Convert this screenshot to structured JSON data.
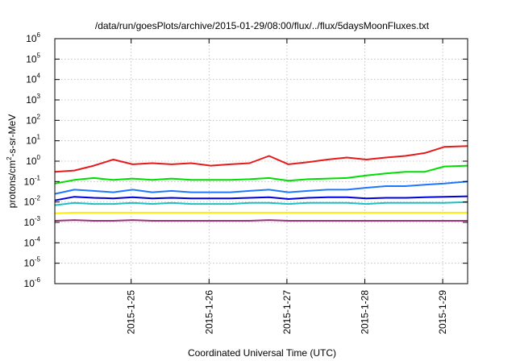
{
  "chart_data": {
    "type": "line",
    "title": "/data/run/goesPlots/archive/2015-01-29/08:00/flux/../flux/5daysMoonFluxes.txt",
    "xlabel": "Coordinated Universal Time (UTC)",
    "ylabel": {
      "base": "protons/cm",
      "sup": "2",
      "rest": "-s-sr-MeV"
    },
    "yscale": "log",
    "ylim": [
      1e-06,
      1000000.0
    ],
    "xlim": [
      0,
      5.3
    ],
    "x_ticks": [
      {
        "x": 0.98,
        "label": "2015-1-25"
      },
      {
        "x": 1.98,
        "label": "2015-1-26"
      },
      {
        "x": 2.98,
        "label": "2015-1-27"
      },
      {
        "x": 3.98,
        "label": "2015-1-28"
      },
      {
        "x": 4.98,
        "label": "2015-1-29"
      }
    ],
    "y_ticks": [
      {
        "value": 1e-06,
        "base": "10",
        "exp": "-6"
      },
      {
        "value": 1e-05,
        "base": "10",
        "exp": "-5"
      },
      {
        "value": 0.0001,
        "base": "10",
        "exp": "-4"
      },
      {
        "value": 0.001,
        "base": "10",
        "exp": "-3"
      },
      {
        "value": 0.01,
        "base": "10",
        "exp": "-2"
      },
      {
        "value": 0.1,
        "base": "10",
        "exp": "-1"
      },
      {
        "value": 1,
        "base": "10",
        "exp": "0"
      },
      {
        "value": 10,
        "base": "10",
        "exp": "1"
      },
      {
        "value": 100,
        "base": "10",
        "exp": "2"
      },
      {
        "value": 1000,
        "base": "10",
        "exp": "3"
      },
      {
        "value": 10000,
        "base": "10",
        "exp": "4"
      },
      {
        "value": 100000,
        "base": "10",
        "exp": "5"
      },
      {
        "value": 1000000,
        "base": "10",
        "exp": "6"
      }
    ],
    "grid": true,
    "series": [
      {
        "color": "#e41a1c",
        "x": [
          0,
          0.25,
          0.5,
          0.75,
          1.0,
          1.25,
          1.5,
          1.75,
          2.0,
          2.25,
          2.5,
          2.75,
          3.0,
          3.25,
          3.5,
          3.75,
          4.0,
          4.25,
          4.5,
          4.75,
          5.0,
          5.3
        ],
        "y": [
          0.3,
          0.35,
          0.6,
          1.2,
          0.7,
          0.8,
          0.7,
          0.8,
          0.6,
          0.7,
          0.8,
          1.8,
          0.7,
          0.9,
          1.2,
          1.5,
          1.2,
          1.5,
          1.8,
          2.5,
          5.0,
          5.5
        ]
      },
      {
        "color": "#00dd00",
        "x": [
          0,
          0.25,
          0.5,
          0.75,
          1.0,
          1.25,
          1.5,
          1.75,
          2.0,
          2.25,
          2.5,
          2.75,
          3.0,
          3.25,
          3.5,
          3.75,
          4.0,
          4.25,
          4.5,
          4.75,
          5.0,
          5.3
        ],
        "y": [
          0.08,
          0.12,
          0.15,
          0.12,
          0.14,
          0.12,
          0.14,
          0.12,
          0.12,
          0.12,
          0.13,
          0.15,
          0.11,
          0.13,
          0.14,
          0.15,
          0.2,
          0.25,
          0.3,
          0.3,
          0.55,
          0.6
        ]
      },
      {
        "color": "#1e78ff",
        "x": [
          0,
          0.25,
          0.5,
          0.75,
          1.0,
          1.25,
          1.5,
          1.75,
          2.0,
          2.25,
          2.5,
          2.75,
          3.0,
          3.25,
          3.5,
          3.75,
          4.0,
          4.25,
          4.5,
          4.75,
          5.0,
          5.3
        ],
        "y": [
          0.025,
          0.04,
          0.035,
          0.03,
          0.04,
          0.03,
          0.035,
          0.03,
          0.03,
          0.03,
          0.035,
          0.04,
          0.03,
          0.035,
          0.04,
          0.04,
          0.05,
          0.06,
          0.06,
          0.07,
          0.08,
          0.1
        ]
      },
      {
        "color": "#0000dd",
        "x": [
          0,
          0.25,
          0.5,
          0.75,
          1.0,
          1.25,
          1.5,
          1.75,
          2.0,
          2.25,
          2.5,
          2.75,
          3.0,
          3.25,
          3.5,
          3.75,
          4.0,
          4.25,
          4.5,
          4.75,
          5.0,
          5.3
        ],
        "y": [
          0.012,
          0.018,
          0.016,
          0.015,
          0.017,
          0.015,
          0.016,
          0.015,
          0.015,
          0.015,
          0.016,
          0.017,
          0.014,
          0.016,
          0.017,
          0.017,
          0.015,
          0.016,
          0.016,
          0.017,
          0.018,
          0.019
        ]
      },
      {
        "color": "#20c0c0",
        "x": [
          0,
          0.25,
          0.5,
          0.75,
          1.0,
          1.25,
          1.5,
          1.75,
          2.0,
          2.25,
          2.5,
          2.75,
          3.0,
          3.25,
          3.5,
          3.75,
          4.0,
          4.25,
          4.5,
          4.75,
          5.0,
          5.3
        ],
        "y": [
          0.007,
          0.009,
          0.008,
          0.008,
          0.009,
          0.008,
          0.009,
          0.008,
          0.008,
          0.008,
          0.009,
          0.009,
          0.008,
          0.009,
          0.009,
          0.009,
          0.008,
          0.009,
          0.009,
          0.009,
          0.009,
          0.01
        ]
      },
      {
        "color": "#ffee00",
        "x": [
          0,
          0.25,
          0.5,
          0.75,
          1.0,
          1.25,
          1.5,
          1.75,
          2.0,
          2.25,
          2.5,
          2.75,
          3.0,
          3.25,
          3.5,
          3.75,
          4.0,
          4.25,
          4.5,
          4.75,
          5.0,
          5.3
        ],
        "y": [
          0.0028,
          0.003,
          0.003,
          0.003,
          0.003,
          0.003,
          0.003,
          0.003,
          0.003,
          0.003,
          0.003,
          0.003,
          0.003,
          0.003,
          0.003,
          0.003,
          0.003,
          0.003,
          0.003,
          0.003,
          0.003,
          0.003
        ]
      },
      {
        "color": "#993377",
        "x": [
          0,
          0.25,
          0.5,
          0.75,
          1.0,
          1.25,
          1.5,
          1.75,
          2.0,
          2.25,
          2.5,
          2.75,
          3.0,
          3.25,
          3.5,
          3.75,
          4.0,
          4.25,
          4.5,
          4.75,
          5.0,
          5.3
        ],
        "y": [
          0.0012,
          0.0013,
          0.0012,
          0.0012,
          0.0013,
          0.0012,
          0.0012,
          0.0012,
          0.0012,
          0.0012,
          0.0012,
          0.0013,
          0.0012,
          0.0012,
          0.0012,
          0.0012,
          0.0012,
          0.0012,
          0.0012,
          0.0012,
          0.0012,
          0.0012
        ]
      }
    ]
  }
}
